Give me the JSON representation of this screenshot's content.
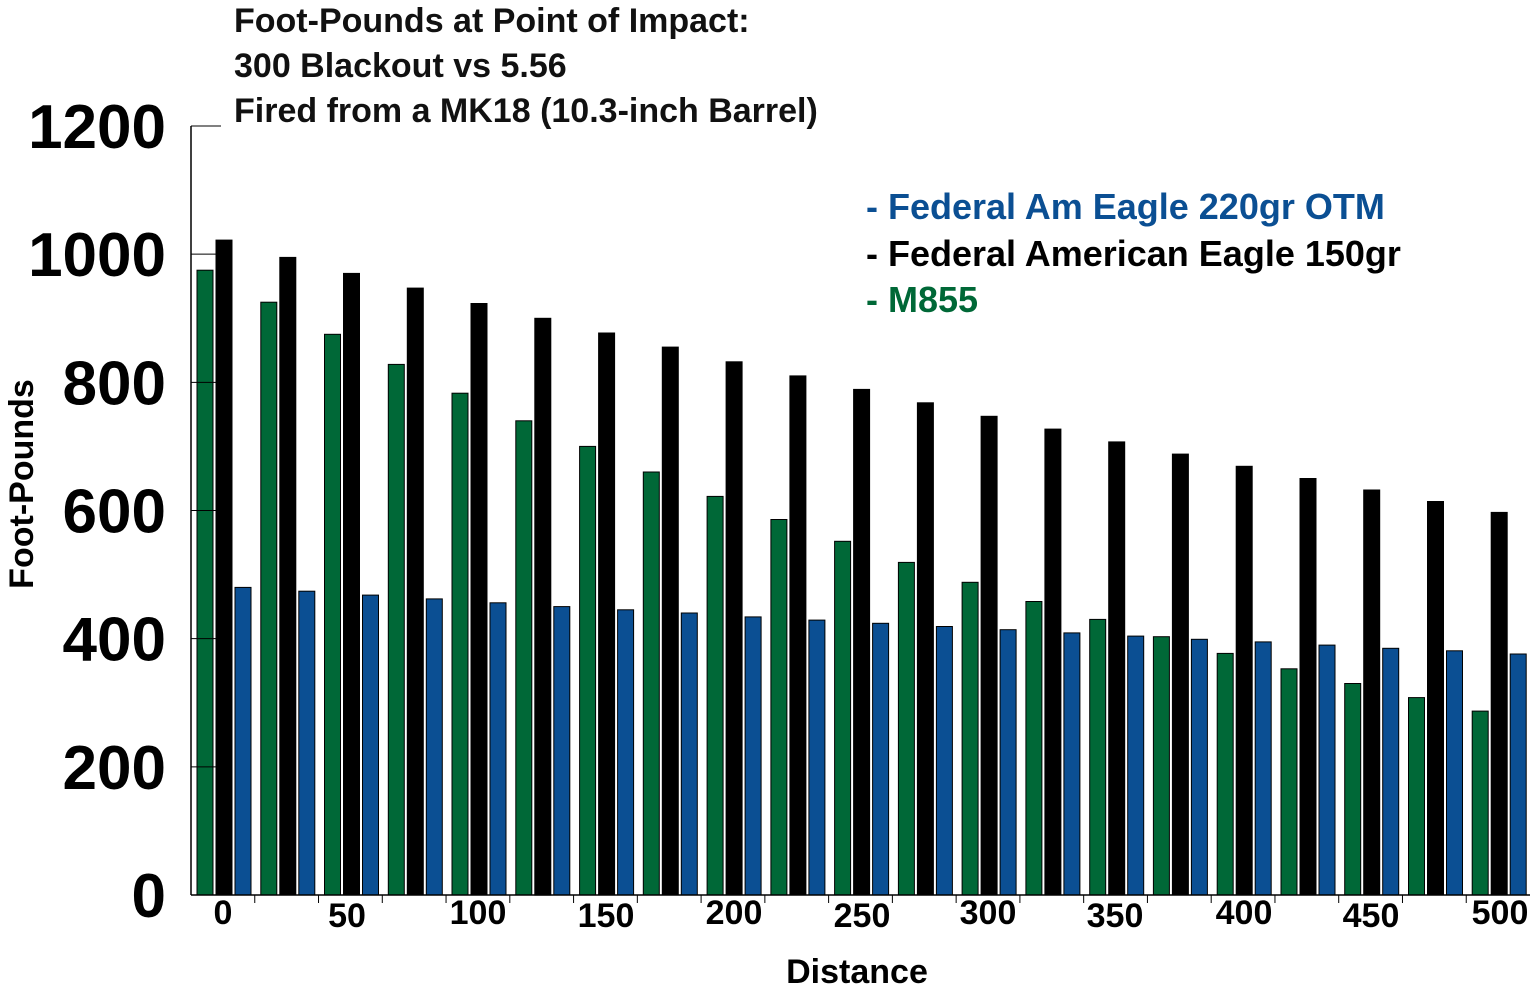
{
  "colors": {
    "black_series": "#000000",
    "green_series": "#006837",
    "blue_series": "#0b4f93"
  },
  "chart_data": {
    "type": "bar",
    "title_lines": [
      "Foot-Pounds at Point of Impact:",
      "300 Blackout vs 5.56",
      "Fired from a MK18 (10.3-inch Barrel)"
    ],
    "xlabel": "Distance",
    "ylabel": "Foot-Pounds",
    "ylim": [
      0,
      1200
    ],
    "yticks": [
      "0",
      "200",
      "400",
      "600",
      "800",
      "1000",
      "1200"
    ],
    "xtick_labels": [
      "0",
      "50",
      "100",
      "150",
      "200",
      "250",
      "300",
      "350",
      "400",
      "450",
      "500"
    ],
    "categories": [
      0,
      25,
      50,
      75,
      100,
      125,
      150,
      175,
      200,
      225,
      250,
      275,
      300,
      325,
      350,
      375,
      400,
      425,
      450,
      475,
      500
    ],
    "legend": [
      {
        "label": "- Federal Am Eagle 220gr OTM",
        "color": "#0b4f93"
      },
      {
        "label": "- Federal American Eagle 150gr",
        "color": "#000000"
      },
      {
        "label": "- M855",
        "color": "#006837"
      }
    ],
    "series": [
      {
        "name": "M855",
        "color": "#006837",
        "values": [
          975,
          925,
          875,
          828,
          783,
          740,
          700,
          660,
          622,
          586,
          552,
          519,
          488,
          458,
          430,
          403,
          377,
          353,
          330,
          308,
          287
        ]
      },
      {
        "name": "Federal American Eagle 150gr",
        "color": "#000000",
        "values": [
          1022,
          995,
          970,
          947,
          923,
          900,
          877,
          855,
          832,
          810,
          789,
          768,
          747,
          727,
          707,
          688,
          669,
          650,
          632,
          614,
          597
        ]
      },
      {
        "name": "Federal Am Eagle 220gr OTM",
        "color": "#0b4f93",
        "values": [
          480,
          474,
          468,
          462,
          456,
          450,
          445,
          440,
          434,
          429,
          424,
          419,
          414,
          409,
          404,
          399,
          395,
          390,
          385,
          381,
          376
        ]
      }
    ]
  }
}
